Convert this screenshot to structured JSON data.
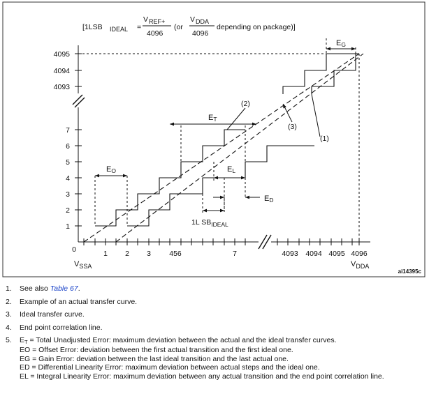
{
  "formula": {
    "prefix": "[1LSB",
    "ideal_sub": "IDEAL",
    "equals": "=",
    "num1": "V",
    "num1_sub": "REF+",
    "den1": "4096",
    "or_text": "(or",
    "num2": "V",
    "num2_sub": "DDA",
    "den2": "4096",
    "suffix": "depending on package)]"
  },
  "y_ticks": [
    "4095",
    "4094",
    "4093",
    "7",
    "6",
    "5",
    "4",
    "3",
    "2",
    "1"
  ],
  "x_ticks": [
    "1",
    "2",
    "3",
    "456",
    "7",
    "4093",
    "4094",
    "4095",
    "4096"
  ],
  "x_zero": "0",
  "x_axis_left": {
    "main": "V",
    "sub": "SSA"
  },
  "x_axis_right": {
    "main": "V",
    "sub": "DDA"
  },
  "labels": {
    "eg": {
      "main": "E",
      "sub": "G"
    },
    "et": {
      "main": "E",
      "sub": "T"
    },
    "eo": {
      "main": "E",
      "sub": "O"
    },
    "el": {
      "main": "E",
      "sub": "L"
    },
    "ed": {
      "main": "E",
      "sub": "D"
    },
    "lsb": {
      "main": "1L SB",
      "sub": "IDEAL"
    },
    "c1": "(1)",
    "c2": "(2)",
    "c3": "(3)"
  },
  "figure_id": "ai14395c",
  "notes": {
    "n1": {
      "num": "1.",
      "prefix": "See also ",
      "link": "Table 67",
      "suffix": "."
    },
    "n2": {
      "num": "2.",
      "text": "Example of an actual transfer curve."
    },
    "n3": {
      "num": "3.",
      "text": "Ideal transfer curve."
    },
    "n4": {
      "num": "4.",
      "text": "End point correlation line."
    },
    "n5": {
      "num": "5.",
      "et_main": "E",
      "et_sub": "T",
      "et_text": " = Total Unadjusted Error: maximum deviation between the actual and the ideal transfer curves.",
      "eo": "EO = Offset Error: deviation between the first actual transition and the first ideal one.",
      "eg": "EG = Gain Error: deviation between the last ideal transition and the last actual one.",
      "ed": "ED = Differential Linearity Error: maximum deviation between actual steps and the ideal one.",
      "el": "EL = Integral Linearity Error: maximum deviation between any actual transition and the end point correlation line."
    }
  }
}
